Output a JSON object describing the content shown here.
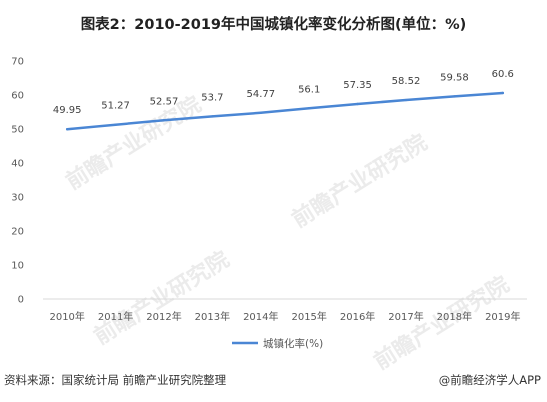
{
  "title": "图表2：2010-2019年中国城镇化率变化分析图(单位：%)",
  "watermark": "前瞻产业研究院",
  "footer": {
    "source": "资料来源：国家统计局 前瞻产业研究院整理",
    "brand": "@前瞻经济学人APP"
  },
  "chart_data": {
    "type": "line",
    "title": "图表2：2010-2019年中国城镇化率变化分析图(单位：%)",
    "categories": [
      "2010年",
      "2011年",
      "2012年",
      "2013年",
      "2014年",
      "2015年",
      "2016年",
      "2017年",
      "2018年",
      "2019年"
    ],
    "series": [
      {
        "name": "城镇化率(%)",
        "values": [
          49.95,
          51.27,
          52.57,
          53.7,
          54.77,
          56.1,
          57.35,
          58.52,
          59.58,
          60.6
        ],
        "color": "#4a86d4"
      }
    ],
    "data_labels": [
      "49.95",
      "51.27",
      "52.57",
      "53.7",
      "54.77",
      "56.1",
      "57.35",
      "58.52",
      "59.58",
      "60.6"
    ],
    "ylim": [
      0,
      70
    ],
    "yticks": [
      0,
      10,
      20,
      30,
      40,
      50,
      60,
      70
    ],
    "grid": false,
    "legend": "bottom-center"
  }
}
